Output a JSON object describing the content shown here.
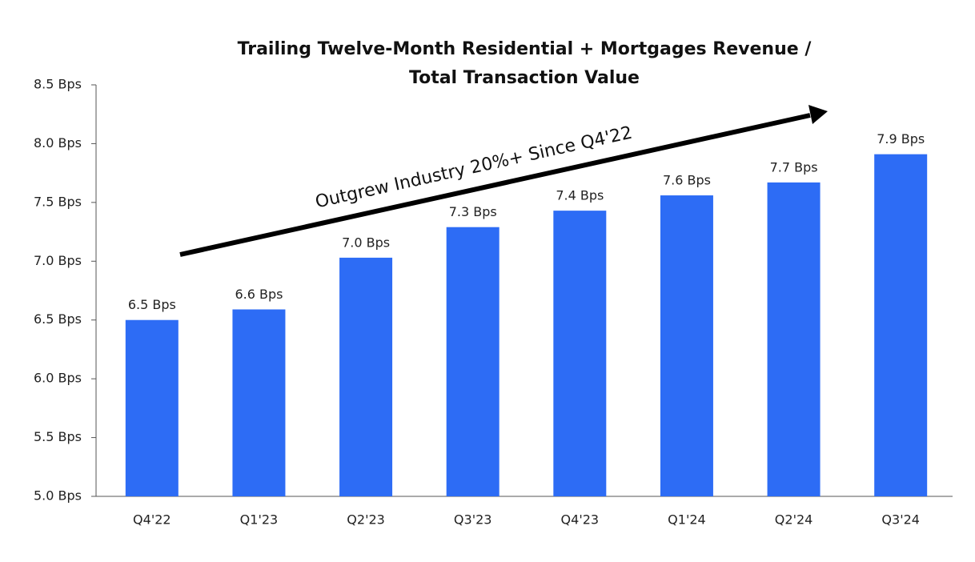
{
  "chart_data": {
    "type": "bar",
    "title": [
      "Trailing Twelve-Month Residential + Mortgages Revenue /",
      "Total Transaction Value"
    ],
    "annotation": "Outgrew Industry 20%+ Since Q4'22",
    "categories": [
      "Q4'22",
      "Q1'23",
      "Q2'23",
      "Q3'23",
      "Q4'23",
      "Q1'24",
      "Q2'24",
      "Q3'24"
    ],
    "values": [
      6.5,
      6.59,
      7.03,
      7.29,
      7.43,
      7.56,
      7.67,
      7.91
    ],
    "value_labels": [
      "6.5 Bps",
      "6.6 Bps",
      "7.0 Bps",
      "7.3 Bps",
      "7.4 Bps",
      "7.6 Bps",
      "7.7 Bps",
      "7.9 Bps"
    ],
    "color": "#2d6cf5",
    "ylim": [
      5.0,
      8.5
    ],
    "yticks": [
      {
        "value": 5.0,
        "label": "5.0 Bps"
      },
      {
        "value": 5.5,
        "label": "5.5 Bps"
      },
      {
        "value": 6.0,
        "label": "6.0 Bps"
      },
      {
        "value": 6.5,
        "label": "6.5 Bps"
      },
      {
        "value": 7.0,
        "label": "7.0 Bps"
      },
      {
        "value": 7.5,
        "label": "7.5 Bps"
      },
      {
        "value": 8.0,
        "label": "8.0 Bps"
      },
      {
        "value": 8.5,
        "label": "8.5 Bps"
      }
    ],
    "grid": false
  }
}
